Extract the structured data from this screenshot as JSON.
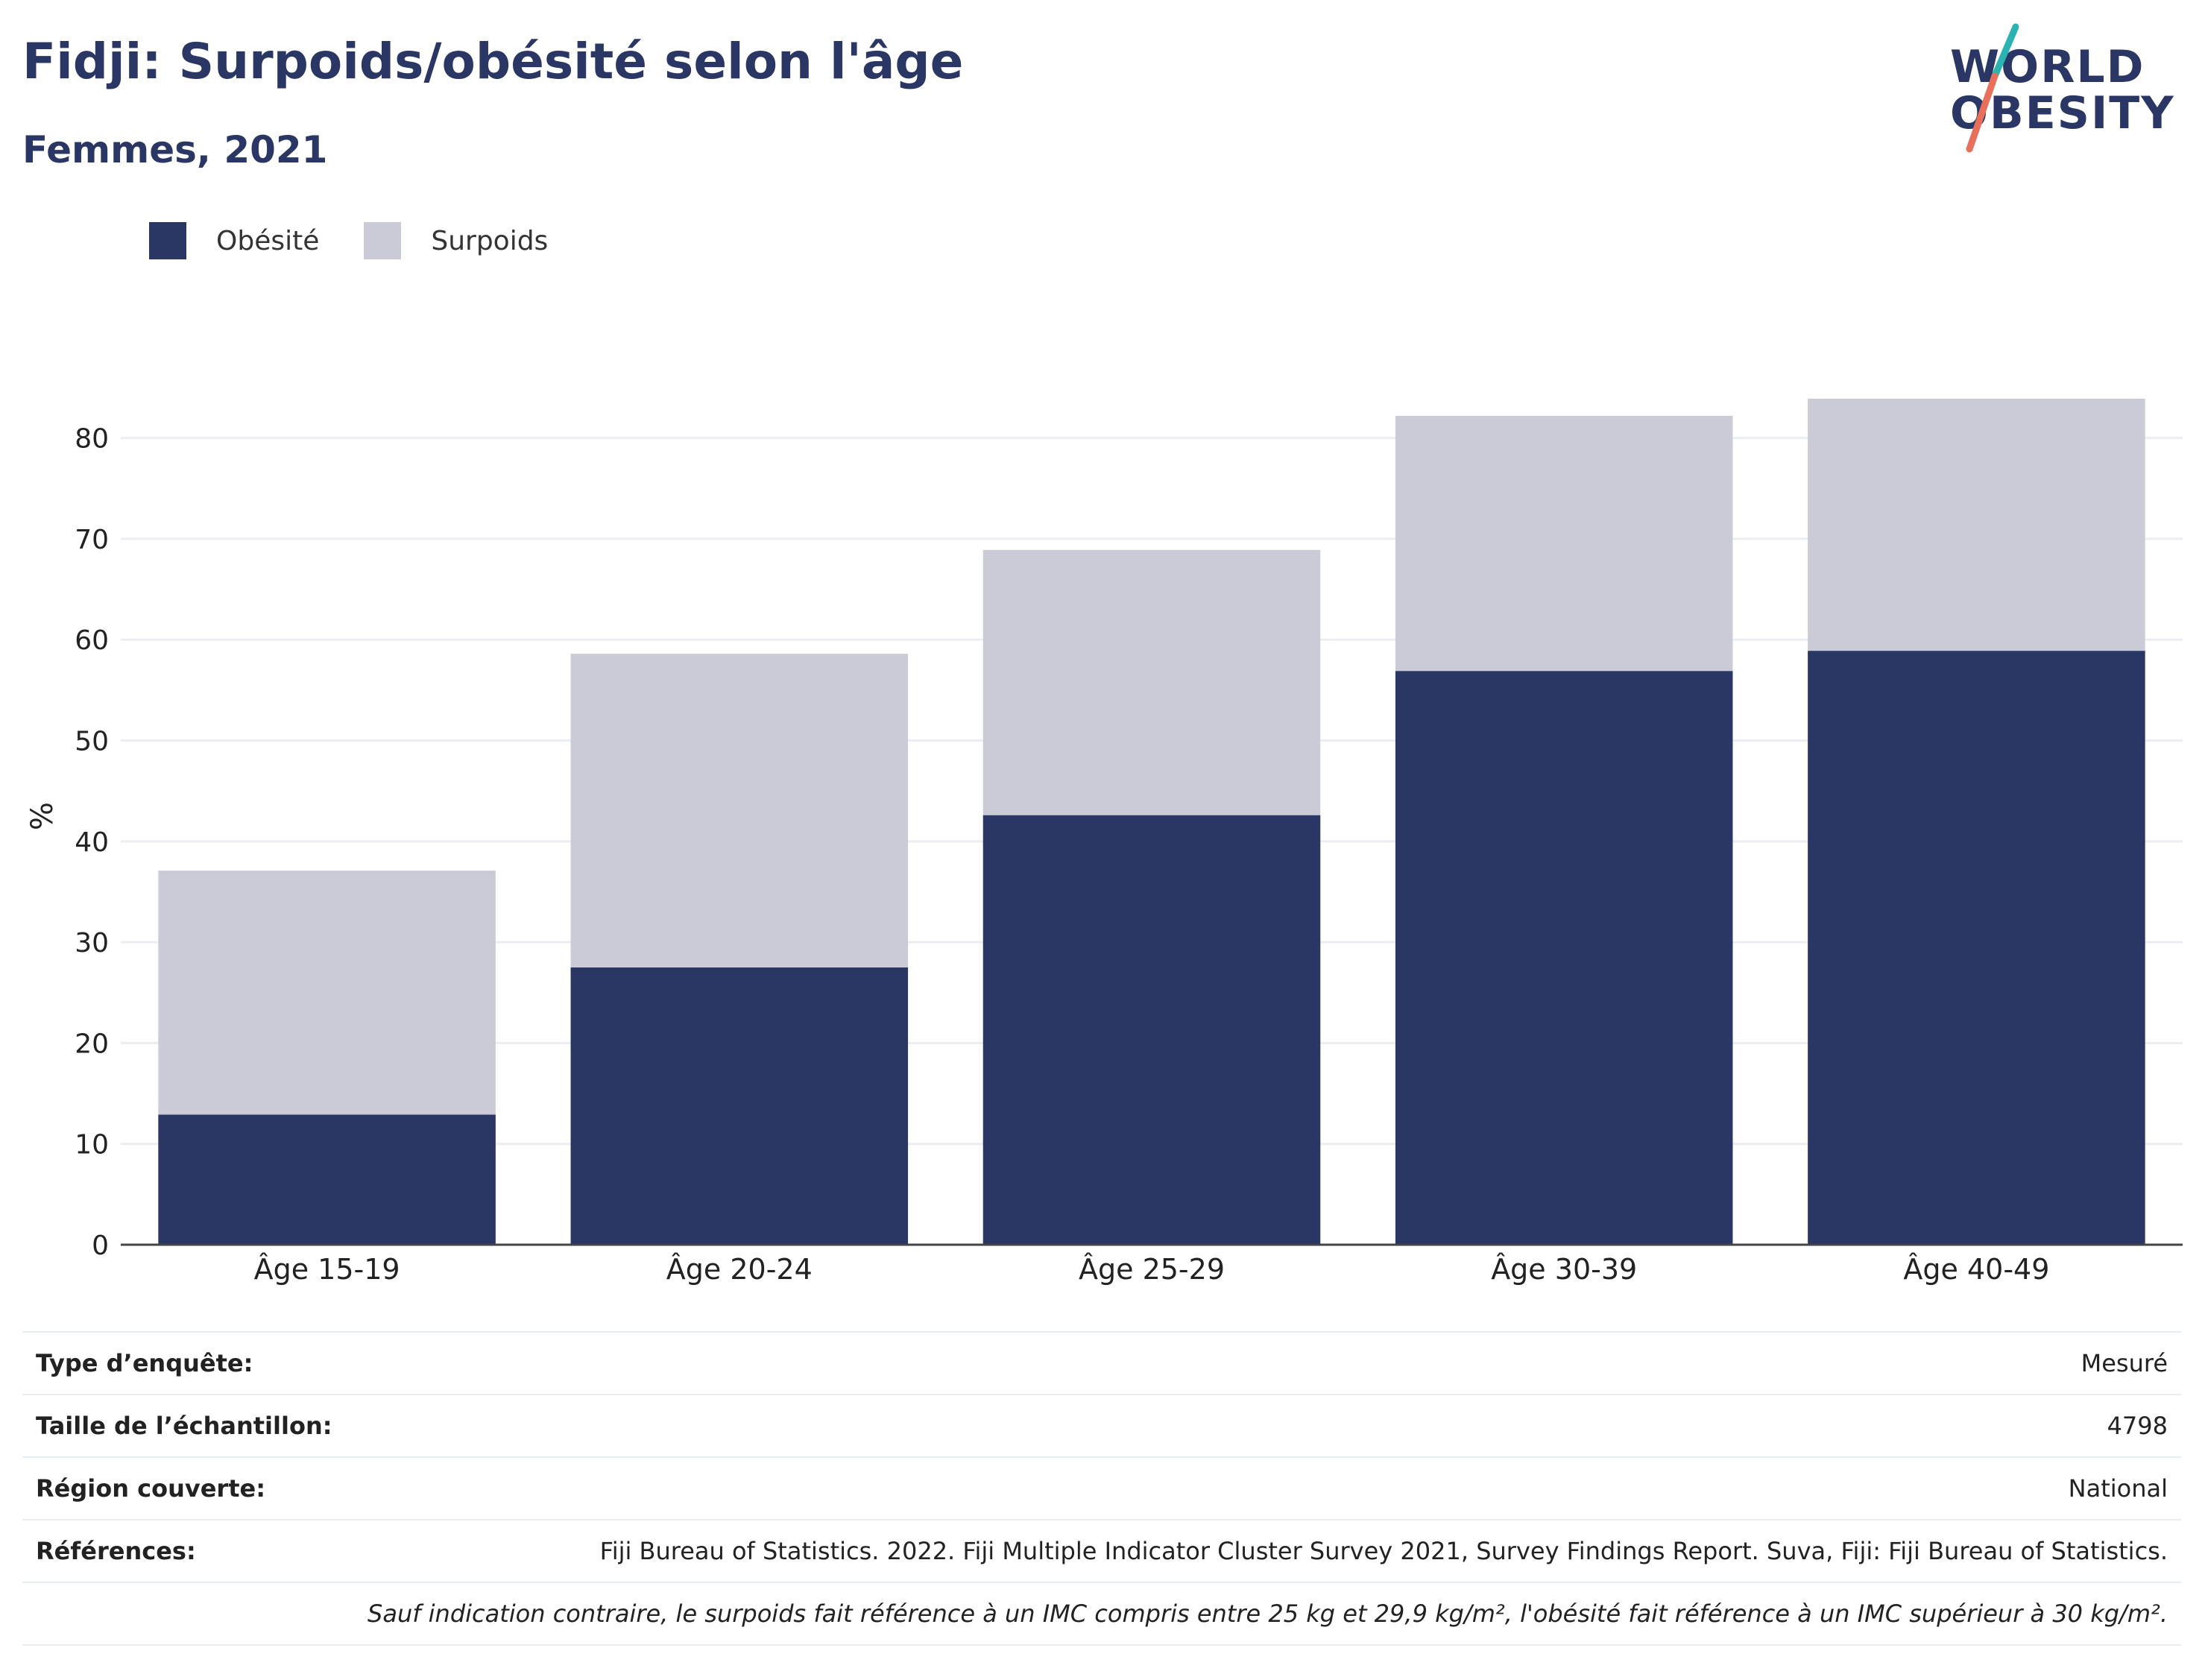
{
  "header": {
    "title": "Fidji: Surpoids/obésité selon l'âge",
    "subtitle": "Femmes, 2021"
  },
  "logo": {
    "line1": "WORLD",
    "line2": "OBESITY",
    "colors": {
      "text": "#2a3663",
      "slash_teal": "#2bb3b1",
      "slash_coral": "#e8705a"
    }
  },
  "legend": {
    "items": [
      {
        "label": "Obésité",
        "color": "#2a3663"
      },
      {
        "label": "Surpoids",
        "color": "#cacbd7"
      }
    ]
  },
  "chart_data": {
    "type": "bar",
    "stacked": true,
    "categories": [
      "Âge 15-19",
      "Âge 20-24",
      "Âge 25-29",
      "Âge 30-39",
      "Âge 40-49"
    ],
    "series": [
      {
        "name": "Obésité",
        "color": "#2a3663",
        "values": [
          12.9,
          27.5,
          42.6,
          56.9,
          58.9
        ]
      },
      {
        "name": "Surpoids",
        "color": "#cacbd7",
        "values": [
          24.2,
          31.1,
          26.3,
          25.3,
          25.0
        ]
      }
    ],
    "ylabel": "%",
    "xlabel": "",
    "ylim": [
      0,
      85
    ],
    "yticks": [
      0,
      10,
      20,
      30,
      40,
      50,
      60,
      70,
      80
    ],
    "grid": true,
    "legend_position": "top-left"
  },
  "info": {
    "rows": [
      {
        "label": "Type d’enquête:",
        "value": "Mesuré"
      },
      {
        "label": "Taille de l’échantillon:",
        "value": "4798"
      },
      {
        "label": "Région couverte:",
        "value": "National"
      },
      {
        "label": "Références:",
        "value": "Fiji Bureau of Statistics. 2022. Fiji Multiple Indicator Cluster Survey 2021, Survey Findings Report. Suva, Fiji: Fiji Bureau of Statistics."
      }
    ],
    "note": "Sauf indication contraire, le surpoids fait référence à un IMC compris entre 25 kg et 29,9 kg/m², l'obésité fait référence à un IMC supérieur à 30 kg/m²."
  }
}
